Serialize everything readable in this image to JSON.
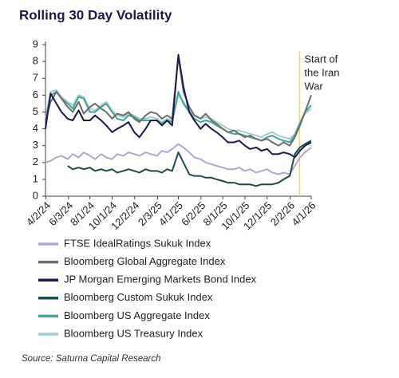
{
  "chart_data": {
    "type": "line",
    "title": "Rolling 30 Day Volatility",
    "source": "Source: Saturna Capital Research",
    "x": [
      "2024-04-01",
      "2024-04-15",
      "2024-05-01",
      "2024-05-15",
      "2024-06-01",
      "2024-06-15",
      "2024-07-01",
      "2024-07-15",
      "2024-08-01",
      "2024-08-15",
      "2024-09-01",
      "2024-09-15",
      "2024-10-01",
      "2024-10-15",
      "2024-11-01",
      "2024-11-15",
      "2024-12-01",
      "2024-12-15",
      "2025-01-01",
      "2025-01-15",
      "2025-02-01",
      "2025-02-15",
      "2025-03-01",
      "2025-03-15",
      "2025-04-01",
      "2025-04-15",
      "2025-05-01",
      "2025-05-15",
      "2025-06-01",
      "2025-06-15",
      "2025-07-01",
      "2025-07-15",
      "2025-08-01",
      "2025-08-15",
      "2025-09-01",
      "2025-09-15",
      "2025-10-01",
      "2025-10-15",
      "2025-11-01",
      "2025-11-15",
      "2025-12-01",
      "2025-12-15",
      "2026-01-01",
      "2026-01-15",
      "2026-02-01",
      "2026-02-15",
      "2026-03-01",
      "2026-03-15",
      "2026-04-01"
    ],
    "xlim": [
      "2024-04-01",
      "2026-04-01"
    ],
    "xticks": [
      {
        "value": "2024-04-02",
        "label": "4/2/24"
      },
      {
        "value": "2024-06-03",
        "label": "6/3/24"
      },
      {
        "value": "2024-08-01",
        "label": "8/1/24"
      },
      {
        "value": "2024-10-01",
        "label": "10/1/24"
      },
      {
        "value": "2024-12-02",
        "label": "12/2/24"
      },
      {
        "value": "2025-02-03",
        "label": "2/3/25"
      },
      {
        "value": "2025-04-01",
        "label": "4/1/25"
      },
      {
        "value": "2025-06-02",
        "label": "6/2/25"
      },
      {
        "value": "2025-08-01",
        "label": "8/1/25"
      },
      {
        "value": "2025-10-01",
        "label": "10/1/25"
      },
      {
        "value": "2025-12-01",
        "label": "12/1/25"
      },
      {
        "value": "2026-02-02",
        "label": "2/2/26"
      },
      {
        "value": "2026-04-01",
        "label": "4/1/26"
      }
    ],
    "ylim": [
      0,
      9
    ],
    "yticks": [
      0,
      1,
      2,
      3,
      4,
      5,
      6,
      7,
      8,
      9
    ],
    "annotation": {
      "x": "2026-02-28",
      "lines": [
        "Start of",
        "the Iran",
        "War"
      ],
      "color": "#f0e14a"
    },
    "series": [
      {
        "name": "FTSE IdealRatings Sukuk Index",
        "color": "#b3a6d1",
        "values": [
          2.0,
          2.1,
          2.3,
          2.4,
          2.2,
          2.5,
          2.3,
          2.6,
          2.4,
          2.2,
          2.5,
          2.3,
          2.2,
          2.5,
          2.4,
          2.6,
          2.5,
          2.4,
          2.6,
          2.5,
          2.4,
          2.7,
          2.6,
          2.8,
          3.1,
          2.9,
          2.6,
          2.3,
          2.2,
          2.0,
          1.9,
          1.8,
          1.7,
          1.6,
          1.6,
          1.7,
          1.5,
          1.6,
          1.4,
          1.5,
          1.6,
          1.4,
          1.3,
          1.4,
          1.3,
          1.8,
          2.3,
          2.6,
          2.9
        ]
      },
      {
        "name": "Bloomberg Global Aggregate Index",
        "color": "#6e6e6e",
        "values": [
          4.5,
          5.6,
          6.2,
          5.8,
          5.3,
          5.0,
          5.6,
          4.9,
          5.3,
          5.5,
          5.2,
          5.0,
          4.6,
          4.9,
          4.8,
          5.0,
          4.6,
          4.4,
          4.8,
          5.0,
          4.9,
          4.6,
          4.8,
          4.6,
          8.3,
          6.2,
          5.3,
          4.8,
          4.6,
          4.9,
          4.5,
          4.3,
          4.0,
          3.8,
          3.9,
          3.7,
          3.5,
          3.6,
          3.4,
          3.3,
          3.4,
          3.2,
          3.0,
          3.2,
          3.0,
          3.5,
          4.2,
          5.0,
          6.0
        ]
      },
      {
        "name": "JP Morgan Emerging Markets Bond Index",
        "color": "#1d1a4a",
        "values": [
          4.0,
          6.1,
          5.5,
          5.0,
          4.6,
          4.5,
          5.1,
          4.5,
          4.5,
          4.8,
          4.5,
          4.2,
          3.8,
          4.0,
          4.2,
          4.4,
          3.8,
          3.5,
          4.0,
          4.5,
          4.5,
          4.2,
          4.5,
          4.2,
          8.4,
          6.5,
          5.0,
          4.5,
          4.0,
          4.3,
          4.0,
          3.8,
          3.5,
          3.2,
          3.2,
          3.3,
          3.0,
          2.8,
          2.9,
          2.7,
          2.8,
          2.5,
          2.5,
          2.6,
          2.5,
          2.3,
          2.7,
          3.0,
          3.2
        ]
      },
      {
        "name": "Bloomberg Custom Sukuk Index",
        "color": "#1f4b4c",
        "values": [
          null,
          null,
          null,
          null,
          1.8,
          1.6,
          1.7,
          1.6,
          1.7,
          1.5,
          1.6,
          1.5,
          1.6,
          1.4,
          1.5,
          1.6,
          1.5,
          1.4,
          1.6,
          1.5,
          1.5,
          1.4,
          1.6,
          1.5,
          2.6,
          2.0,
          1.3,
          1.2,
          1.2,
          1.1,
          1.1,
          1.0,
          0.9,
          0.8,
          0.8,
          0.7,
          0.7,
          0.7,
          0.6,
          0.7,
          0.7,
          0.7,
          0.8,
          1.0,
          1.2,
          2.5,
          2.9,
          3.1,
          3.3
        ]
      },
      {
        "name": "Bloomberg US Aggregate Index",
        "color": "#45a596",
        "values": [
          4.5,
          6.0,
          6.2,
          5.8,
          5.5,
          5.2,
          5.9,
          5.8,
          5.0,
          5.0,
          5.3,
          5.5,
          5.0,
          4.6,
          4.5,
          4.8,
          4.7,
          4.5,
          4.5,
          4.5,
          4.5,
          4.3,
          4.5,
          4.4,
          6.2,
          5.5,
          5.0,
          4.6,
          4.4,
          4.5,
          4.4,
          4.2,
          4.0,
          3.8,
          3.7,
          3.7,
          3.6,
          3.5,
          3.4,
          3.3,
          3.5,
          3.6,
          3.4,
          3.3,
          3.2,
          3.6,
          4.3,
          5.0,
          5.4
        ]
      },
      {
        "name": "Bloomberg US Treasury Index",
        "color": "#a7cdd0",
        "values": [
          4.6,
          6.2,
          6.3,
          5.9,
          5.6,
          5.4,
          6.0,
          5.9,
          5.2,
          5.1,
          5.4,
          5.6,
          5.1,
          4.8,
          4.7,
          4.9,
          4.8,
          4.6,
          4.6,
          4.7,
          4.6,
          4.4,
          4.6,
          4.5,
          6.0,
          5.6,
          5.1,
          4.8,
          4.6,
          4.7,
          4.6,
          4.4,
          4.2,
          4.0,
          3.9,
          3.9,
          3.8,
          3.7,
          3.6,
          3.5,
          3.7,
          3.8,
          3.6,
          3.5,
          3.4,
          3.7,
          4.4,
          4.9,
          5.2
        ]
      }
    ]
  }
}
